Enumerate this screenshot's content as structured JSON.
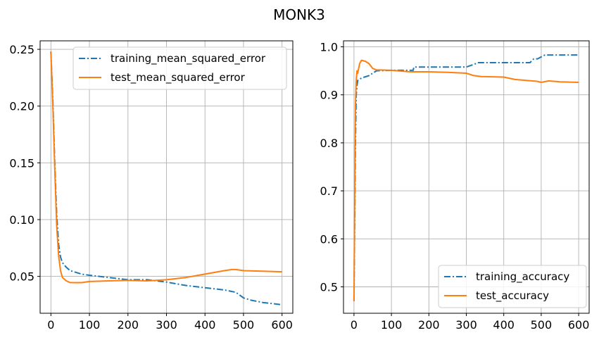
{
  "figure_title": "MONK3",
  "colors": {
    "training": "#1f77b4",
    "test": "#ff7f0e",
    "grid": "#b0b0b0",
    "frame": "#000000"
  },
  "chart_data": [
    {
      "type": "line",
      "title": "",
      "xlabel": "",
      "ylabel": "",
      "xlim": [
        -28,
        628
      ],
      "ylim": [
        0.0175,
        0.2575
      ],
      "xticks": [
        0,
        100,
        200,
        300,
        400,
        500,
        600
      ],
      "yticks": [
        0.05,
        0.1,
        0.15,
        0.2,
        0.25
      ],
      "ytick_labels": [
        "0.05",
        "0.10",
        "0.15",
        "0.20",
        "0.25"
      ],
      "grid": true,
      "legend_position": "top-right",
      "series": [
        {
          "name": "training_mean_squared_error",
          "style": "dashdot",
          "x": [
            0,
            5,
            10,
            15,
            20,
            25,
            30,
            40,
            50,
            60,
            80,
            100,
            150,
            200,
            250,
            300,
            350,
            400,
            450,
            480,
            500,
            520,
            550,
            600
          ],
          "y": [
            0.248,
            0.205,
            0.15,
            0.105,
            0.078,
            0.067,
            0.062,
            0.058,
            0.055,
            0.054,
            0.052,
            0.051,
            0.049,
            0.047,
            0.047,
            0.045,
            0.042,
            0.04,
            0.038,
            0.036,
            0.031,
            0.029,
            0.027,
            0.025
          ]
        },
        {
          "name": "test_mean_squared_error",
          "style": "solid",
          "x": [
            0,
            5,
            10,
            15,
            20,
            25,
            30,
            40,
            50,
            60,
            80,
            100,
            150,
            200,
            250,
            300,
            350,
            400,
            450,
            470,
            480,
            500,
            550,
            600
          ],
          "y": [
            0.248,
            0.2,
            0.145,
            0.095,
            0.068,
            0.055,
            0.049,
            0.046,
            0.0445,
            0.0445,
            0.0445,
            0.0455,
            0.046,
            0.0465,
            0.046,
            0.047,
            0.049,
            0.052,
            0.055,
            0.056,
            0.056,
            0.055,
            0.0545,
            0.054
          ]
        }
      ]
    },
    {
      "type": "line",
      "title": "",
      "xlabel": "",
      "ylabel": "",
      "xlim": [
        -28,
        628
      ],
      "ylim": [
        0.445,
        1.0125
      ],
      "xticks": [
        0,
        100,
        200,
        300,
        400,
        500,
        600
      ],
      "yticks": [
        0.5,
        0.6,
        0.7,
        0.8,
        0.9,
        1.0
      ],
      "ytick_labels": [
        "0.5",
        "0.6",
        "0.7",
        "0.8",
        "0.9",
        "1.0"
      ],
      "grid": true,
      "legend_position": "bottom-right",
      "series": [
        {
          "name": "training_accuracy",
          "style": "dashdot",
          "x": [
            0,
            2,
            4,
            6,
            8,
            10,
            20,
            40,
            50,
            60,
            100,
            158,
            160,
            300,
            322,
            330,
            470,
            480,
            490,
            502,
            510,
            600
          ],
          "y": [
            0.47,
            0.65,
            0.8,
            0.9,
            0.92,
            0.93,
            0.935,
            0.94,
            0.945,
            0.95,
            0.951,
            0.951,
            0.958,
            0.958,
            0.964,
            0.967,
            0.967,
            0.975,
            0.975,
            0.98,
            0.983,
            0.983
          ]
        },
        {
          "name": "test_accuracy",
          "style": "solid",
          "x": [
            0,
            2,
            4,
            6,
            8,
            10,
            15,
            20,
            30,
            40,
            50,
            60,
            100,
            150,
            200,
            250,
            300,
            320,
            340,
            400,
            430,
            460,
            490,
            500,
            520,
            550,
            600
          ],
          "y": [
            0.47,
            0.7,
            0.88,
            0.93,
            0.95,
            0.945,
            0.965,
            0.972,
            0.97,
            0.965,
            0.955,
            0.952,
            0.951,
            0.948,
            0.948,
            0.947,
            0.945,
            0.94,
            0.938,
            0.937,
            0.932,
            0.93,
            0.928,
            0.926,
            0.929,
            0.927,
            0.926
          ]
        }
      ]
    }
  ]
}
